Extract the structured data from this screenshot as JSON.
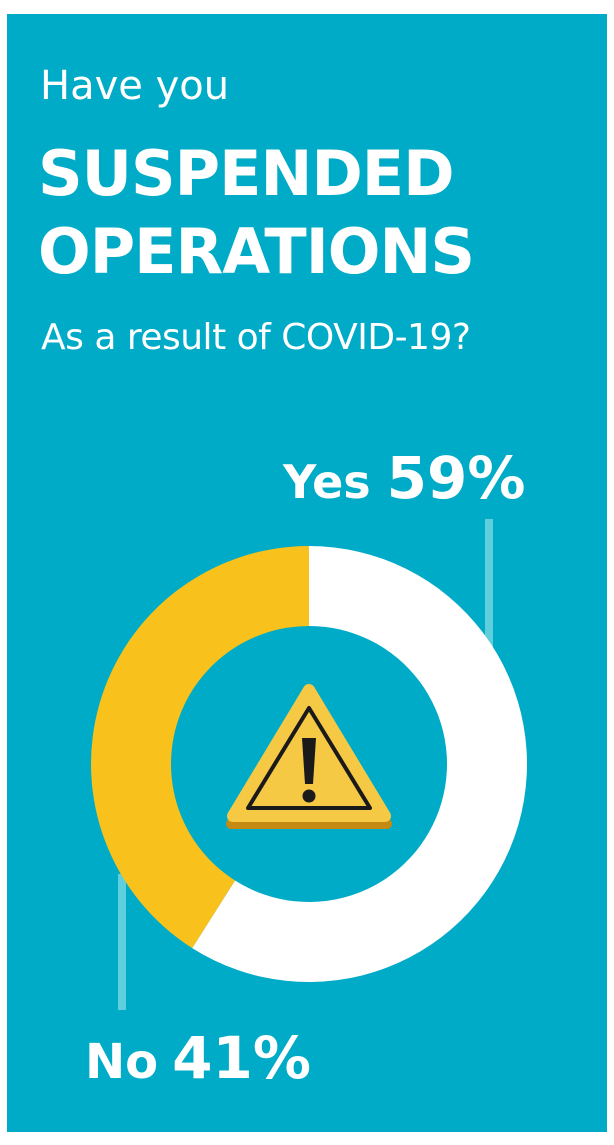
{
  "heading": {
    "line1": "Have you",
    "line2": "SUSPENDED",
    "line3": "OPERATIONS",
    "line4": "As a result of COVID-19?"
  },
  "colors": {
    "background": "#00abc7",
    "yes": "#ffffff",
    "no": "#f8c11b",
    "warning_fill": "#f6c945",
    "leader_line": "#5fcfde"
  },
  "icon": "warning-icon",
  "chart_data": {
    "type": "pie",
    "variant": "donut",
    "categories": [
      "Yes",
      "No"
    ],
    "values": [
      59,
      41
    ],
    "value_labels": [
      "59%",
      "41%"
    ],
    "unit": "%"
  }
}
